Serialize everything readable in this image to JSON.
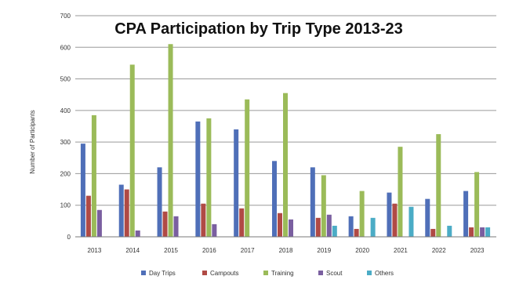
{
  "chart_data": {
    "type": "bar",
    "title": "CPA Participation by Trip Type 2013-23",
    "xlabel": "",
    "ylabel": "Number of Participants",
    "categories": [
      "2013",
      "2014",
      "2015",
      "2016",
      "2017",
      "2018",
      "2019",
      "2020",
      "2021",
      "2022",
      "2023"
    ],
    "ylim": [
      0,
      700
    ],
    "yticks": [
      0,
      100,
      200,
      300,
      400,
      500,
      600,
      700
    ],
    "grid": true,
    "legend_position": "bottom",
    "series": [
      {
        "name": "Day Trips",
        "color": "#4f6fb8",
        "values": [
          295,
          165,
          220,
          365,
          340,
          240,
          220,
          65,
          140,
          120,
          145
        ]
      },
      {
        "name": "Campouts",
        "color": "#b04a45",
        "values": [
          130,
          150,
          80,
          105,
          90,
          75,
          60,
          25,
          105,
          25,
          30
        ]
      },
      {
        "name": "Training",
        "color": "#9bbb59",
        "values": [
          385,
          545,
          610,
          375,
          435,
          455,
          195,
          145,
          285,
          325,
          205
        ]
      },
      {
        "name": "Scout",
        "color": "#7a5fa0",
        "values": [
          85,
          20,
          65,
          40,
          0,
          55,
          70,
          0,
          0,
          0,
          30
        ]
      },
      {
        "name": "Others",
        "color": "#4bacc6",
        "values": [
          0,
          0,
          0,
          0,
          0,
          0,
          35,
          60,
          95,
          35,
          30
        ]
      }
    ]
  }
}
